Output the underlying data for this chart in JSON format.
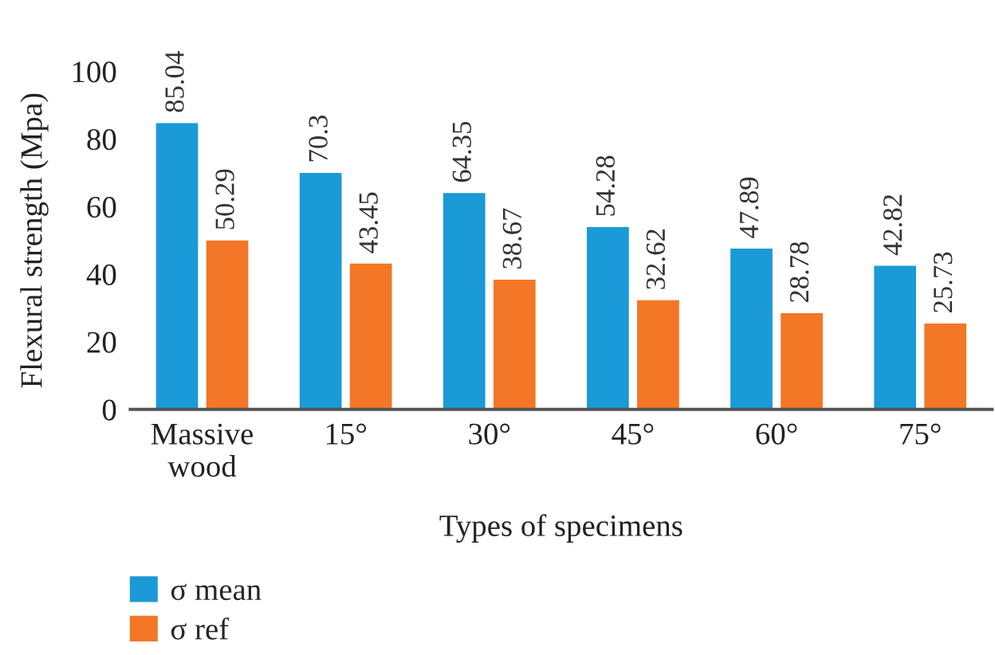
{
  "chart_data": {
    "type": "bar",
    "categories": [
      "Massive\nwood",
      "15°",
      "30°",
      "45°",
      "60°",
      "75°"
    ],
    "series": [
      {
        "name": "σ mean",
        "color": "#1a9ad6",
        "values": [
          85.04,
          70.3,
          64.35,
          54.28,
          47.89,
          42.82
        ]
      },
      {
        "name": "σ ref",
        "color": "#f37726",
        "values": [
          50.29,
          43.45,
          38.67,
          32.62,
          28.78,
          25.73
        ]
      }
    ],
    "xlabel": "Types of specimens",
    "ylabel": "Flexural strength (Mpa)",
    "ylim": [
      0,
      100
    ],
    "yticks": [
      0,
      20,
      40,
      60,
      80,
      100
    ],
    "data_labels": true,
    "legend": "bottom left",
    "grid": false
  }
}
